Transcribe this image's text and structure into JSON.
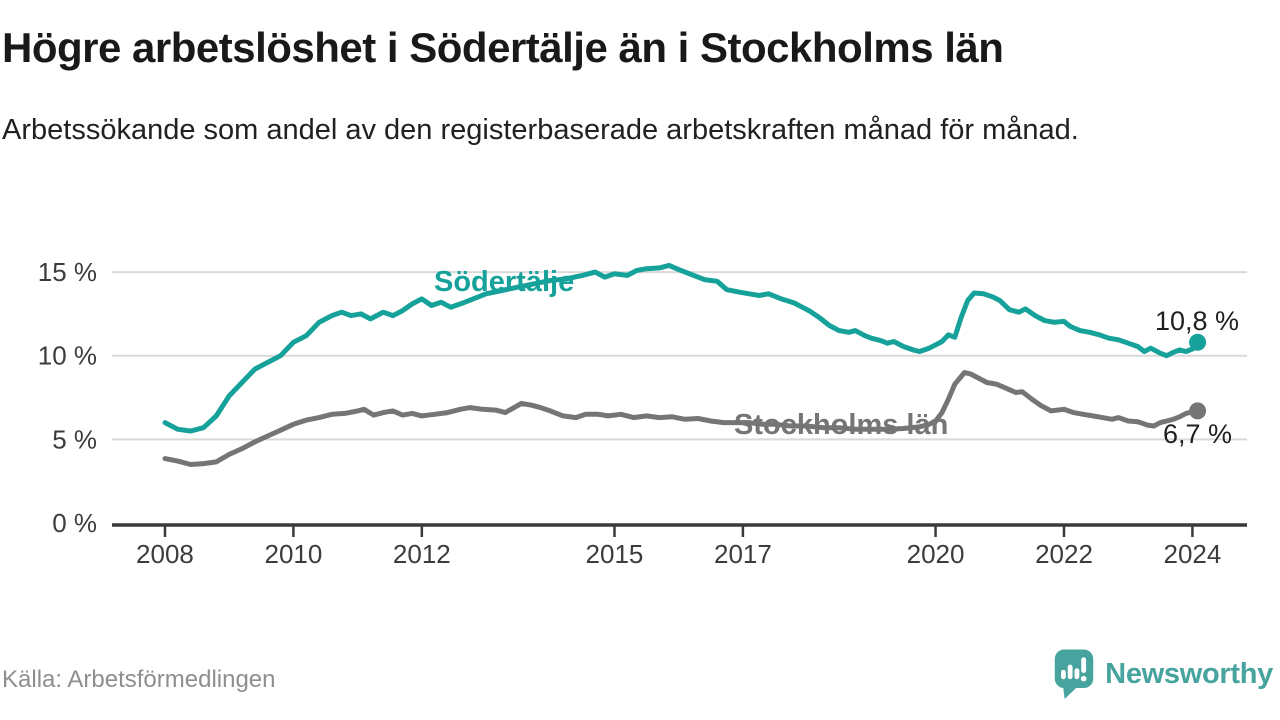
{
  "header": {
    "title": "Högre arbetslöshet i Södertälje än i Stockholms län",
    "subtitle": "Arbetssökande som andel av den registerbaserade arbetskraften månad för månad."
  },
  "footer": {
    "source": "Källa: Arbetsförmedlingen",
    "brand": "Newsworthy"
  },
  "colors": {
    "sodertalje": "#16a29a",
    "stockholm": "#757575",
    "grid": "#d9d9d9",
    "axis": "#3a3a3a",
    "tick_text": "#3c3c3c",
    "value_text": "#1f1f1f",
    "muted_text": "#8e8e8e",
    "brand": "#47a39e"
  },
  "chart_data": {
    "type": "line",
    "title": "Högre arbetslöshet i Södertälje än i Stockholms län",
    "subtitle": "Arbetssökande som andel av den registerbaserade arbetskraften månad för månad.",
    "xlabel": "",
    "ylabel": "",
    "grid": "horizontal",
    "legend_position": "inline-labels",
    "x_ticks": [
      2008,
      2010,
      2012,
      2015,
      2017,
      2020,
      2022,
      2024
    ],
    "y_ticks": [
      0,
      5,
      10,
      15
    ],
    "y_tick_suffix": " %",
    "xlim": [
      2007.175,
      2024.85
    ],
    "ylim": [
      0,
      16.5
    ],
    "series": [
      {
        "name": "Södertälje",
        "color": "#16a29a",
        "end_label": "10,8 %",
        "end_value": 10.8,
        "points": [
          [
            2008.0,
            6.0
          ],
          [
            2008.2,
            5.6
          ],
          [
            2008.4,
            5.5
          ],
          [
            2008.6,
            5.7
          ],
          [
            2008.8,
            6.4
          ],
          [
            2009.0,
            7.6
          ],
          [
            2009.2,
            8.4
          ],
          [
            2009.4,
            9.2
          ],
          [
            2009.6,
            9.6
          ],
          [
            2009.8,
            10.0
          ],
          [
            2010.0,
            10.8
          ],
          [
            2010.2,
            11.2
          ],
          [
            2010.4,
            12.0
          ],
          [
            2010.6,
            12.4
          ],
          [
            2010.75,
            12.6
          ],
          [
            2010.9,
            12.4
          ],
          [
            2011.05,
            12.5
          ],
          [
            2011.2,
            12.2
          ],
          [
            2011.4,
            12.6
          ],
          [
            2011.55,
            12.4
          ],
          [
            2011.7,
            12.7
          ],
          [
            2011.85,
            13.1
          ],
          [
            2012.0,
            13.4
          ],
          [
            2012.15,
            13.0
          ],
          [
            2012.3,
            13.2
          ],
          [
            2012.45,
            12.9
          ],
          [
            2012.6,
            13.1
          ],
          [
            2012.8,
            13.4
          ],
          [
            2013.0,
            13.7
          ],
          [
            2013.25,
            13.9
          ],
          [
            2013.5,
            14.1
          ],
          [
            2013.75,
            14.3
          ],
          [
            2014.0,
            14.5
          ],
          [
            2014.25,
            14.6
          ],
          [
            2014.5,
            14.8
          ],
          [
            2014.7,
            15.0
          ],
          [
            2014.85,
            14.7
          ],
          [
            2015.0,
            14.9
          ],
          [
            2015.2,
            14.8
          ],
          [
            2015.35,
            15.1
          ],
          [
            2015.5,
            15.2
          ],
          [
            2015.7,
            15.25
          ],
          [
            2015.85,
            15.4
          ],
          [
            2016.0,
            15.15
          ],
          [
            2016.2,
            14.85
          ],
          [
            2016.4,
            14.55
          ],
          [
            2016.6,
            14.45
          ],
          [
            2016.75,
            13.95
          ],
          [
            2016.95,
            13.8
          ],
          [
            2017.1,
            13.7
          ],
          [
            2017.25,
            13.6
          ],
          [
            2017.4,
            13.7
          ],
          [
            2017.6,
            13.4
          ],
          [
            2017.8,
            13.15
          ],
          [
            2017.95,
            12.85
          ],
          [
            2018.05,
            12.65
          ],
          [
            2018.2,
            12.25
          ],
          [
            2018.35,
            11.8
          ],
          [
            2018.5,
            11.5
          ],
          [
            2018.65,
            11.4
          ],
          [
            2018.75,
            11.5
          ],
          [
            2018.9,
            11.2
          ],
          [
            2019.0,
            11.05
          ],
          [
            2019.15,
            10.9
          ],
          [
            2019.25,
            10.75
          ],
          [
            2019.35,
            10.85
          ],
          [
            2019.5,
            10.55
          ],
          [
            2019.65,
            10.35
          ],
          [
            2019.75,
            10.25
          ],
          [
            2019.9,
            10.45
          ],
          [
            2020.0,
            10.65
          ],
          [
            2020.1,
            10.85
          ],
          [
            2020.2,
            11.25
          ],
          [
            2020.3,
            11.1
          ],
          [
            2020.4,
            12.3
          ],
          [
            2020.5,
            13.3
          ],
          [
            2020.6,
            13.75
          ],
          [
            2020.75,
            13.7
          ],
          [
            2020.9,
            13.5
          ],
          [
            2021.0,
            13.3
          ],
          [
            2021.15,
            12.75
          ],
          [
            2021.3,
            12.6
          ],
          [
            2021.4,
            12.8
          ],
          [
            2021.55,
            12.4
          ],
          [
            2021.7,
            12.1
          ],
          [
            2021.85,
            12.0
          ],
          [
            2022.0,
            12.05
          ],
          [
            2022.1,
            11.75
          ],
          [
            2022.25,
            11.5
          ],
          [
            2022.4,
            11.4
          ],
          [
            2022.55,
            11.25
          ],
          [
            2022.7,
            11.05
          ],
          [
            2022.85,
            10.95
          ],
          [
            2023.0,
            10.75
          ],
          [
            2023.15,
            10.55
          ],
          [
            2023.25,
            10.25
          ],
          [
            2023.35,
            10.45
          ],
          [
            2023.5,
            10.15
          ],
          [
            2023.6,
            10.0
          ],
          [
            2023.7,
            10.2
          ],
          [
            2023.8,
            10.35
          ],
          [
            2023.9,
            10.25
          ],
          [
            2024.0,
            10.4
          ],
          [
            2024.08,
            10.8
          ]
        ]
      },
      {
        "name": "Stockholms län",
        "color": "#757575",
        "end_label": "6,7 %",
        "end_value": 6.7,
        "points": [
          [
            2008.0,
            3.85
          ],
          [
            2008.2,
            3.7
          ],
          [
            2008.4,
            3.5
          ],
          [
            2008.6,
            3.55
          ],
          [
            2008.8,
            3.65
          ],
          [
            2009.0,
            4.1
          ],
          [
            2009.2,
            4.45
          ],
          [
            2009.4,
            4.85
          ],
          [
            2009.6,
            5.2
          ],
          [
            2009.8,
            5.55
          ],
          [
            2010.0,
            5.9
          ],
          [
            2010.2,
            6.15
          ],
          [
            2010.4,
            6.3
          ],
          [
            2010.6,
            6.5
          ],
          [
            2010.8,
            6.55
          ],
          [
            2011.0,
            6.7
          ],
          [
            2011.1,
            6.8
          ],
          [
            2011.25,
            6.45
          ],
          [
            2011.4,
            6.6
          ],
          [
            2011.55,
            6.7
          ],
          [
            2011.7,
            6.45
          ],
          [
            2011.85,
            6.55
          ],
          [
            2012.0,
            6.4
          ],
          [
            2012.2,
            6.5
          ],
          [
            2012.4,
            6.6
          ],
          [
            2012.6,
            6.8
          ],
          [
            2012.75,
            6.9
          ],
          [
            2012.95,
            6.8
          ],
          [
            2013.15,
            6.75
          ],
          [
            2013.3,
            6.6
          ],
          [
            2013.55,
            7.15
          ],
          [
            2013.7,
            7.05
          ],
          [
            2013.85,
            6.9
          ],
          [
            2014.0,
            6.7
          ],
          [
            2014.2,
            6.4
          ],
          [
            2014.4,
            6.3
          ],
          [
            2014.55,
            6.5
          ],
          [
            2014.75,
            6.5
          ],
          [
            2014.9,
            6.4
          ],
          [
            2015.1,
            6.5
          ],
          [
            2015.3,
            6.3
          ],
          [
            2015.5,
            6.4
          ],
          [
            2015.7,
            6.3
          ],
          [
            2015.9,
            6.35
          ],
          [
            2016.1,
            6.2
          ],
          [
            2016.3,
            6.25
          ],
          [
            2016.5,
            6.1
          ],
          [
            2016.7,
            6.0
          ],
          [
            2016.9,
            6.0
          ],
          [
            2017.1,
            6.0
          ],
          [
            2017.3,
            5.9
          ],
          [
            2017.5,
            5.9
          ],
          [
            2017.75,
            5.8
          ],
          [
            2018.0,
            5.8
          ],
          [
            2018.25,
            5.7
          ],
          [
            2018.5,
            5.7
          ],
          [
            2018.75,
            5.6
          ],
          [
            2019.0,
            5.6
          ],
          [
            2019.25,
            5.6
          ],
          [
            2019.5,
            5.65
          ],
          [
            2019.75,
            5.75
          ],
          [
            2019.9,
            5.9
          ],
          [
            2020.0,
            6.1
          ],
          [
            2020.1,
            6.6
          ],
          [
            2020.2,
            7.4
          ],
          [
            2020.3,
            8.3
          ],
          [
            2020.45,
            9.0
          ],
          [
            2020.55,
            8.9
          ],
          [
            2020.7,
            8.6
          ],
          [
            2020.8,
            8.4
          ],
          [
            2020.95,
            8.3
          ],
          [
            2021.1,
            8.05
          ],
          [
            2021.25,
            7.8
          ],
          [
            2021.35,
            7.85
          ],
          [
            2021.5,
            7.4
          ],
          [
            2021.65,
            7.0
          ],
          [
            2021.8,
            6.7
          ],
          [
            2022.0,
            6.8
          ],
          [
            2022.15,
            6.6
          ],
          [
            2022.3,
            6.5
          ],
          [
            2022.45,
            6.4
          ],
          [
            2022.6,
            6.3
          ],
          [
            2022.75,
            6.2
          ],
          [
            2022.85,
            6.3
          ],
          [
            2023.0,
            6.1
          ],
          [
            2023.15,
            6.05
          ],
          [
            2023.3,
            5.85
          ],
          [
            2023.4,
            5.8
          ],
          [
            2023.5,
            6.0
          ],
          [
            2023.6,
            6.1
          ],
          [
            2023.7,
            6.2
          ],
          [
            2023.8,
            6.35
          ],
          [
            2023.9,
            6.55
          ],
          [
            2024.0,
            6.65
          ],
          [
            2024.08,
            6.7
          ]
        ]
      }
    ]
  }
}
